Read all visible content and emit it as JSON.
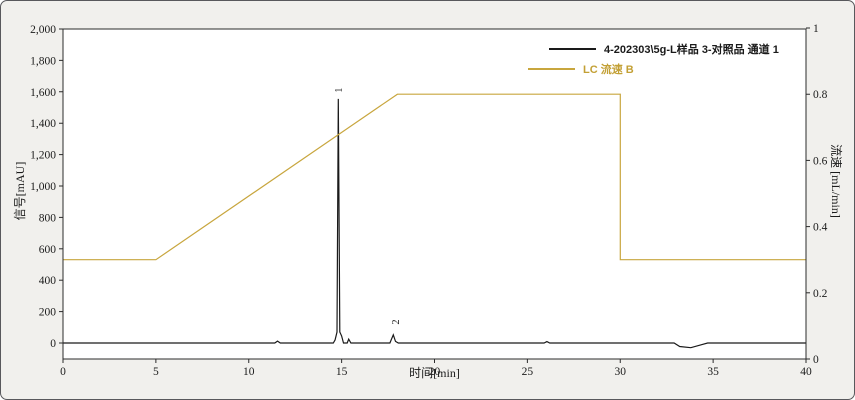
{
  "window": {
    "background_color": "#f1f0ed",
    "plot_background_color": "#ffffff",
    "frame_color": "#2b2b2b",
    "border_color": "#58585c"
  },
  "chart_data": {
    "type": "line",
    "title": "",
    "grid": false,
    "legend_position": "top-right-inside",
    "x_axis": {
      "label": "时间[min]",
      "min": 0,
      "max": 40,
      "tick_values": [
        0,
        5,
        10,
        15,
        20,
        25,
        30,
        35,
        40
      ],
      "tick_labels": [
        "0",
        "5",
        "10",
        "15",
        "20",
        "25",
        "30",
        "35",
        "40"
      ]
    },
    "y_axis_left": {
      "label": "信号[mAU]",
      "min": 0,
      "max": 2000,
      "tick_values": [
        0,
        200,
        400,
        600,
        800,
        1000,
        1200,
        1400,
        1600,
        1800,
        2000
      ],
      "tick_labels": [
        "0",
        "200",
        "400",
        "600",
        "800",
        "1,000",
        "1,200",
        "1,400",
        "1,600",
        "1,800",
        "2,000"
      ]
    },
    "y_axis_right": {
      "label": "流速 [mL/min]",
      "min": 0,
      "max": 1,
      "tick_values": [
        0,
        0.2,
        0.4,
        0.6,
        0.8,
        1
      ],
      "tick_labels": [
        "0",
        "0.2",
        "0.4",
        "0.6",
        "0.8",
        "1"
      ]
    },
    "series": [
      {
        "name": "4-202303\\5g-L样品 3-对照品 通道 1",
        "key": "signal",
        "color": "#1a1a1a",
        "axis": "left",
        "points": [
          [
            0,
            0
          ],
          [
            11.4,
            0
          ],
          [
            11.55,
            12
          ],
          [
            11.7,
            0
          ],
          [
            14.55,
            0
          ],
          [
            14.65,
            20
          ],
          [
            14.75,
            70
          ],
          [
            14.82,
            1555
          ],
          [
            14.9,
            70
          ],
          [
            15.0,
            45
          ],
          [
            15.1,
            0
          ],
          [
            15.3,
            0
          ],
          [
            15.38,
            25
          ],
          [
            15.5,
            0
          ],
          [
            17.6,
            0
          ],
          [
            17.78,
            52
          ],
          [
            17.9,
            10
          ],
          [
            18.05,
            0
          ],
          [
            25.9,
            0
          ],
          [
            26.05,
            9
          ],
          [
            26.2,
            0
          ],
          [
            32.9,
            0
          ],
          [
            33.2,
            -22
          ],
          [
            33.8,
            -30
          ],
          [
            34.4,
            -10
          ],
          [
            34.7,
            0
          ],
          [
            40,
            0
          ]
        ]
      },
      {
        "name": "LC 流速 B",
        "key": "flow",
        "color": "#c8a63e",
        "axis": "right",
        "points": [
          [
            0,
            0.3
          ],
          [
            5,
            0.3
          ],
          [
            18,
            0.8
          ],
          [
            30,
            0.8
          ],
          [
            30,
            0.3
          ],
          [
            40,
            0.3
          ]
        ]
      }
    ],
    "peak_annotations": [
      {
        "label": "1",
        "t": 14.86,
        "value": 1595
      },
      {
        "label": "2",
        "t": 17.92,
        "value": 118
      }
    ],
    "legend": {
      "entries": [
        {
          "label": "4-202303\\5g-L样品 3-对照品 通道 1",
          "color": "#1a1a1a",
          "text_color": "#1a1a1a"
        },
        {
          "label": "LC 流速 B",
          "color": "#c8a63e",
          "text_color": "#c3a035"
        }
      ]
    }
  }
}
